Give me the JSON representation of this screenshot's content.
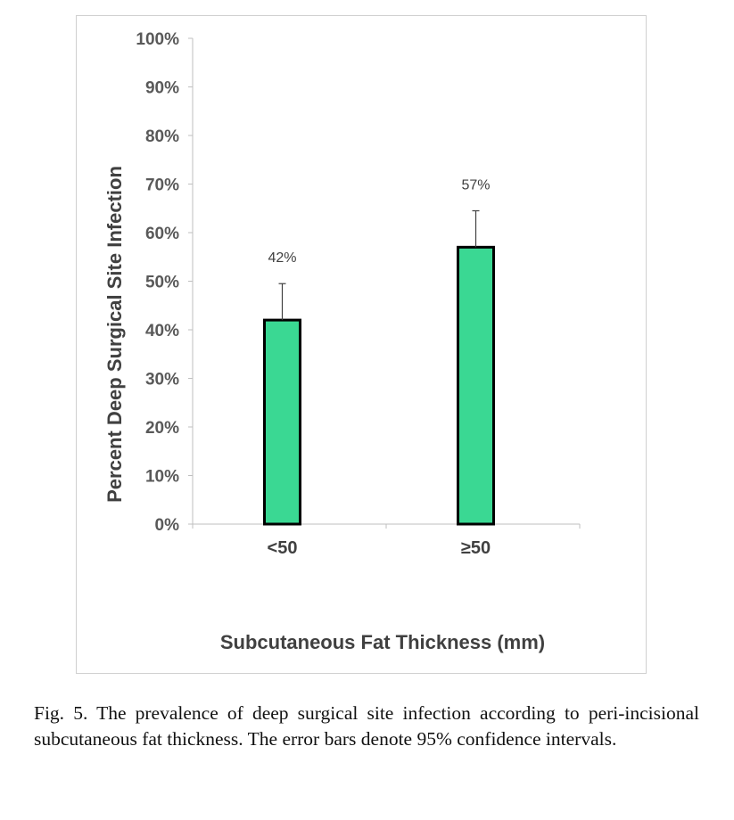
{
  "chart_data": {
    "type": "bar",
    "categories": [
      "<50",
      "≥50"
    ],
    "values": [
      42,
      57
    ],
    "error_upper": [
      49.5,
      64.5
    ],
    "data_labels": [
      "42%",
      "57%"
    ],
    "xlabel": "Subcutaneous Fat Thickness (mm)",
    "ylabel": "Percent Deep Surgical Site Infection",
    "ylim": [
      0,
      100
    ],
    "y_ticks": [
      "0%",
      "10%",
      "20%",
      "30%",
      "40%",
      "50%",
      "60%",
      "70%",
      "80%",
      "90%",
      "100%"
    ],
    "grid": false,
    "bar_color": "#3ad893",
    "bar_edge_color": "#000000"
  },
  "caption": "Fig. 5. The prevalence of deep surgical site infection according to peri-incisional subcutaneous fat thickness. The error bars denote 95% confidence intervals."
}
